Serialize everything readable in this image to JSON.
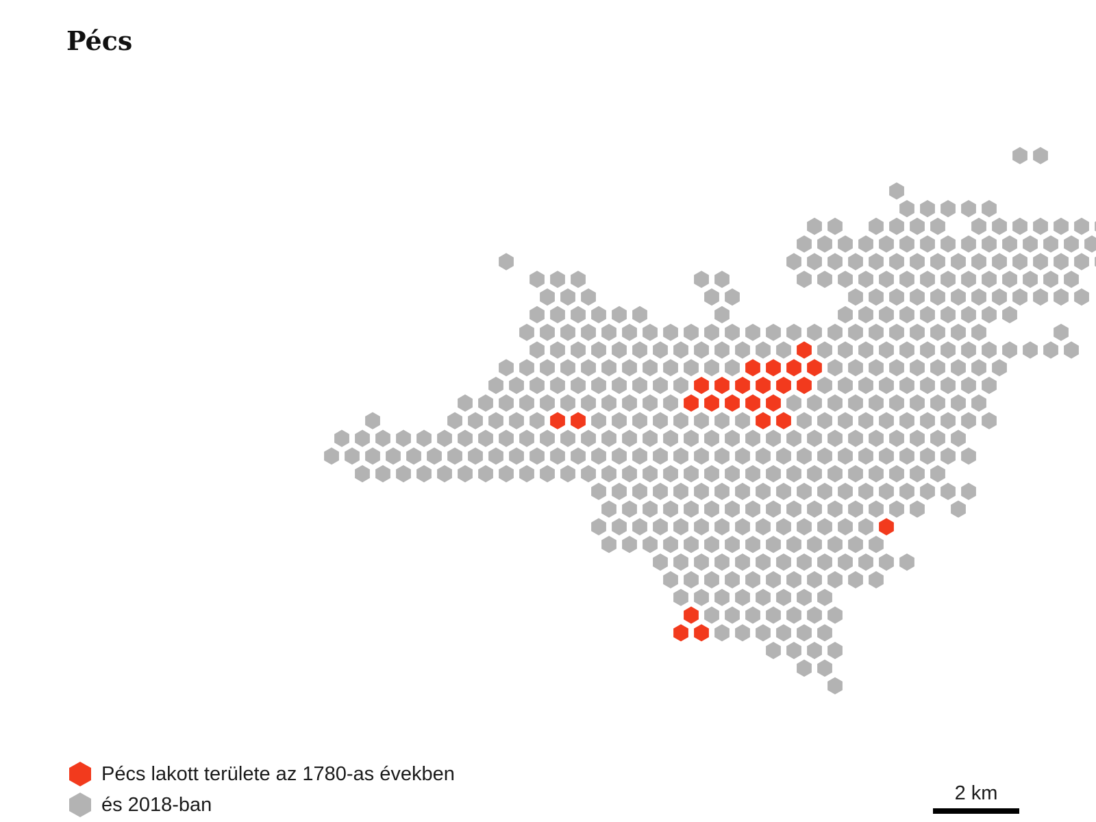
{
  "title": "Pécs",
  "colors": {
    "settled_1780s": "#f23a1d",
    "settled_2018": "#b3b3b3"
  },
  "legend": {
    "items": [
      {
        "key": "settled_1780s",
        "label": "Pécs lakott területe az 1780-as években"
      },
      {
        "key": "settled_2018",
        "label": "és 2018-ban"
      }
    ]
  },
  "scale_bar": {
    "label": "2 km"
  },
  "map": {
    "rows": [
      {
        "r": 0,
        "cells": [
          64
        ]
      },
      {
        "r": 1,
        "cells": [
          63,
          65
        ]
      },
      {
        "r": 2,
        "cells": [
          63,
          64
        ]
      },
      {
        "r": 3,
        "cells": [
          63,
          65
        ]
      },
      {
        "r": 4,
        "cells": [
          49,
          50,
          56,
          57,
          59,
          60,
          61,
          62,
          63
        ]
      },
      {
        "r": 5,
        "cells": [
          57,
          58,
          59,
          60
        ]
      },
      {
        "r": 6,
        "cells": [
          43
        ]
      },
      {
        "r": 7,
        "cells": [
          43,
          44,
          45,
          46,
          47
        ]
      },
      {
        "r": 8,
        "cells": [
          39,
          40,
          42,
          43,
          44,
          45,
          47,
          48,
          49,
          50,
          51,
          52,
          53,
          54
        ]
      },
      {
        "r": 9,
        "cells": [
          38,
          39,
          40,
          41,
          42,
          43,
          44,
          45,
          46,
          47,
          48,
          49,
          50,
          51,
          52,
          53,
          54,
          55,
          56
        ]
      },
      {
        "r": 10,
        "cells": [
          24,
          38,
          39,
          40,
          41,
          42,
          43,
          44,
          45,
          46,
          47,
          48,
          49,
          50,
          51,
          52,
          53,
          54,
          55
        ]
      },
      {
        "r": 11,
        "cells": [
          25,
          26,
          27,
          33,
          34,
          38,
          39,
          40,
          41,
          42,
          43,
          44,
          45,
          46,
          47,
          48,
          49,
          50,
          51
        ]
      },
      {
        "r": 12,
        "cells": [
          26,
          27,
          28,
          34,
          35,
          41,
          42,
          43,
          44,
          45,
          46,
          47,
          48,
          49,
          50,
          51,
          52
        ]
      },
      {
        "r": 13,
        "cells": [
          25,
          26,
          27,
          28,
          29,
          30,
          34,
          40,
          41,
          42,
          43,
          44,
          45,
          46,
          47,
          48
        ]
      },
      {
        "r": 14,
        "cells": [
          25,
          26,
          27,
          28,
          29,
          30,
          31,
          32,
          33,
          34,
          35,
          36,
          37,
          38,
          39,
          40,
          41,
          42,
          43,
          44,
          45,
          46,
          47,
          51
        ]
      },
      {
        "r": 15,
        "cells": [
          25,
          26,
          27,
          28,
          29,
          30,
          31,
          32,
          33,
          34,
          35,
          36,
          37,
          38,
          39,
          40,
          41,
          42,
          43,
          44,
          45,
          46,
          47,
          48,
          49,
          50,
          51
        ]
      },
      {
        "r": 16,
        "cells": [
          24,
          25,
          26,
          27,
          28,
          29,
          30,
          31,
          32,
          33,
          34,
          35,
          36,
          37,
          38,
          39,
          40,
          41,
          42,
          43,
          44,
          45,
          46,
          47,
          48
        ]
      },
      {
        "r": 17,
        "cells": [
          23,
          24,
          25,
          26,
          27,
          28,
          29,
          30,
          31,
          32,
          33,
          34,
          35,
          36,
          37,
          38,
          39,
          40,
          41,
          42,
          43,
          44,
          45,
          46,
          47
        ]
      },
      {
        "r": 18,
        "cells": [
          22,
          23,
          24,
          25,
          26,
          27,
          28,
          29,
          30,
          31,
          32,
          33,
          34,
          35,
          36,
          37,
          38,
          39,
          40,
          41,
          42,
          43,
          44,
          45,
          46,
          47
        ]
      },
      {
        "r": 19,
        "cells": [
          17,
          21,
          22,
          23,
          24,
          25,
          26,
          27,
          28,
          29,
          30,
          31,
          32,
          33,
          34,
          35,
          36,
          37,
          38,
          39,
          40,
          41,
          42,
          43,
          44,
          45,
          46,
          47
        ]
      },
      {
        "r": 20,
        "cells": [
          16,
          17,
          18,
          19,
          20,
          21,
          22,
          23,
          24,
          25,
          26,
          27,
          28,
          29,
          30,
          31,
          32,
          33,
          34,
          35,
          36,
          37,
          38,
          39,
          40,
          41,
          42,
          43,
          44,
          45,
          46
        ]
      },
      {
        "r": 21,
        "cells": [
          15,
          16,
          17,
          18,
          19,
          20,
          21,
          22,
          23,
          24,
          25,
          26,
          27,
          28,
          29,
          30,
          31,
          32,
          33,
          34,
          35,
          36,
          37,
          38,
          39,
          40,
          41,
          42,
          43,
          44,
          45,
          46
        ]
      },
      {
        "r": 22,
        "cells": [
          17,
          18,
          19,
          20,
          21,
          22,
          23,
          24,
          25,
          26,
          27,
          28,
          29,
          30,
          31,
          32,
          33,
          34,
          35,
          36,
          37,
          38,
          39,
          40,
          41,
          42,
          43,
          44,
          45
        ]
      },
      {
        "r": 23,
        "cells": [
          28,
          29,
          30,
          31,
          32,
          33,
          34,
          35,
          36,
          37,
          38,
          39,
          40,
          41,
          42,
          43,
          44,
          45,
          46
        ]
      },
      {
        "r": 24,
        "cells": [
          29,
          30,
          31,
          32,
          33,
          34,
          35,
          36,
          37,
          38,
          39,
          40,
          41,
          42,
          43,
          44,
          46
        ]
      },
      {
        "r": 25,
        "cells": [
          28,
          29,
          30,
          31,
          32,
          33,
          34,
          35,
          36,
          37,
          38,
          39,
          40,
          41,
          42
        ]
      },
      {
        "r": 26,
        "cells": [
          29,
          30,
          31,
          32,
          33,
          34,
          35,
          36,
          37,
          38,
          39,
          40,
          41,
          42
        ]
      },
      {
        "r": 27,
        "cells": [
          31,
          32,
          33,
          34,
          35,
          36,
          37,
          38,
          39,
          40,
          41,
          42,
          43
        ]
      },
      {
        "r": 28,
        "cells": [
          32,
          33,
          34,
          35,
          36,
          37,
          38,
          39,
          40,
          41,
          42
        ]
      },
      {
        "r": 29,
        "cells": [
          32,
          33,
          34,
          35,
          36,
          37,
          38,
          39
        ]
      },
      {
        "r": 30,
        "cells": [
          33,
          34,
          35,
          36,
          37,
          38,
          39,
          40
        ]
      },
      {
        "r": 31,
        "cells": [
          32,
          33,
          34,
          35,
          36,
          37,
          38,
          39
        ]
      },
      {
        "r": 32,
        "cells": [
          37,
          38,
          39,
          40
        ]
      },
      {
        "r": 33,
        "cells": [
          38,
          39
        ]
      },
      {
        "r": 34,
        "cells": [
          40
        ]
      }
    ],
    "settled_1780s": [
      [
        15,
        38
      ],
      [
        16,
        36
      ],
      [
        16,
        37
      ],
      [
        16,
        38
      ],
      [
        16,
        39
      ],
      [
        17,
        33
      ],
      [
        17,
        34
      ],
      [
        17,
        35
      ],
      [
        17,
        36
      ],
      [
        17,
        37
      ],
      [
        17,
        38
      ],
      [
        18,
        33
      ],
      [
        18,
        34
      ],
      [
        18,
        35
      ],
      [
        18,
        36
      ],
      [
        18,
        37
      ],
      [
        19,
        26
      ],
      [
        19,
        27
      ],
      [
        19,
        36
      ],
      [
        19,
        37
      ],
      [
        25,
        42
      ],
      [
        26,
        43
      ],
      [
        30,
        33
      ],
      [
        31,
        32
      ],
      [
        31,
        33
      ]
    ]
  }
}
